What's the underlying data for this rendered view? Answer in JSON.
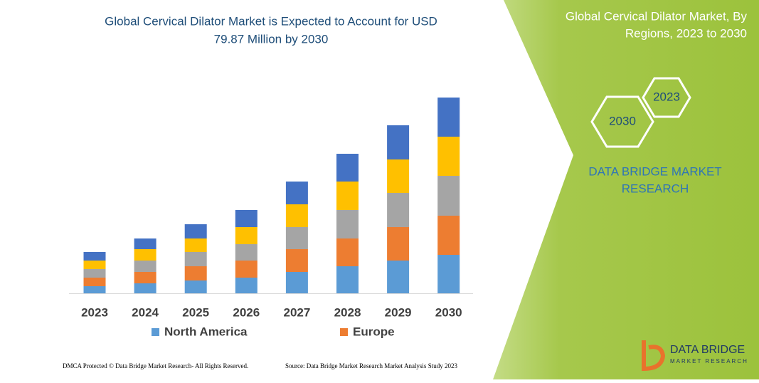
{
  "header": {
    "title_lines": [
      "Global Cervical Dilator Market is Expected to Account for USD",
      "79.87 Million by 2030"
    ]
  },
  "chart_data": {
    "type": "stacked-bar",
    "categories": [
      "2023",
      "2024",
      "2025",
      "2026",
      "2027",
      "2028",
      "2029",
      "2030"
    ],
    "series": [
      {
        "name": "North America",
        "color": "#5b9bd5",
        "values": [
          10,
          14,
          18,
          22,
          30,
          38,
          46,
          54
        ]
      },
      {
        "name": "Europe",
        "color": "#ed7d31",
        "values": [
          12,
          16,
          20,
          24,
          32,
          39,
          47,
          55
        ]
      },
      {
        "color": "#a5a5a5",
        "values": [
          12,
          16,
          20,
          23,
          31,
          40,
          48,
          56
        ]
      },
      {
        "color": "#ffc000",
        "values": [
          12,
          16,
          19,
          24,
          32,
          40,
          47,
          55
        ]
      },
      {
        "color": "#4472c4",
        "values": [
          12,
          15,
          20,
          24,
          32,
          39,
          48,
          55
        ]
      }
    ]
  },
  "right_panel": {
    "title_lines": [
      "Global Cervical Dilator Market, By",
      "Regions, 2023 to 2030"
    ],
    "hex_small": "2023",
    "hex_large": "2030",
    "brand_lines": [
      "DATA BRIDGE MARKET",
      "RESEARCH"
    ],
    "logo_title": "DATA BRIDGE",
    "logo_subtitle": "MARKET RESEARCH"
  },
  "footer": {
    "left": "DMCA Protected © Data Bridge Market Research-  All Rights Reserved.",
    "right": "Source: Data Bridge Market Research  Market Analysis Study 2023"
  }
}
